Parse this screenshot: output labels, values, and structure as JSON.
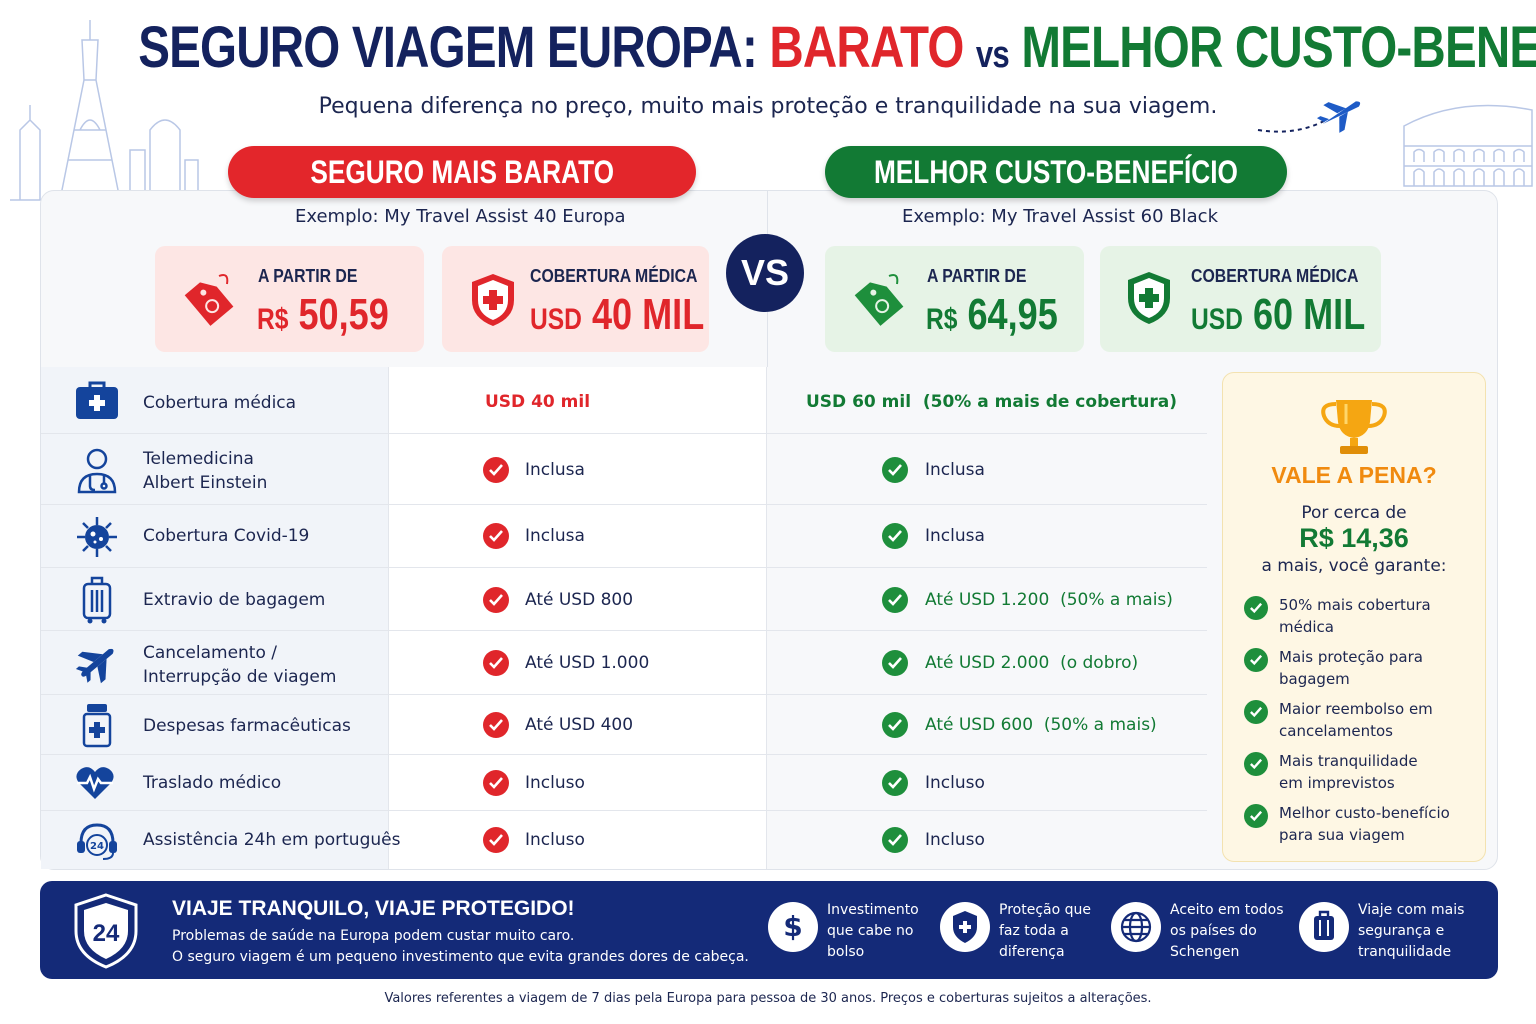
{
  "header": {
    "title_part1": "SEGURO VIAGEM EUROPA:",
    "title_cheap": "BARATO",
    "title_vs": "vs",
    "title_best": "MELHOR CUSTO-BENEFÍCIO",
    "subtitle": "Pequena diferença no preço, muito mais proteção e tranquilidade na sua viagem."
  },
  "cheap": {
    "label": "SEGURO MAIS BARATO",
    "example": "Exemplo: My Travel Assist 40 Europa",
    "price_label": "A PARTIR DE",
    "price_currency": "R$",
    "price_value": "50,59",
    "coverage_label": "COBERTURA MÉDICA",
    "coverage_currency": "USD",
    "coverage_value": "40 MIL"
  },
  "vs_label": "VS",
  "best": {
    "label": "MELHOR CUSTO-BENEFÍCIO",
    "example": "Exemplo: My Travel Assist 60 Black",
    "price_label": "A PARTIR DE",
    "price_currency": "R$",
    "price_value": "64,95",
    "coverage_label": "COBERTURA MÉDICA",
    "coverage_currency": "USD",
    "coverage_value": "60 MIL"
  },
  "table": {
    "rows": [
      {
        "icon": "medical-kit-icon",
        "label": "Cobertura médica",
        "cheap": "USD 40 mil",
        "best": "USD 60 mil",
        "best_note": "(50% a mais de cobertura)"
      },
      {
        "icon": "doctor-icon",
        "label_line1": "Telemedicina",
        "label_line2": "Albert Einstein",
        "cheap": "Inclusa",
        "best": "Inclusa"
      },
      {
        "icon": "virus-icon",
        "label": "Cobertura Covid-19",
        "cheap": "Inclusa",
        "best": "Inclusa"
      },
      {
        "icon": "luggage-icon",
        "label": "Extravio de bagagem",
        "cheap": "Até USD 800",
        "best": "Até USD 1.200",
        "best_note": "(50% a mais)"
      },
      {
        "icon": "airplane-icon",
        "label_line1": "Cancelamento /",
        "label_line2": "Interrupção de viagem",
        "cheap": "Até USD 1.000",
        "best": "Até USD 2.000",
        "best_note": "(o dobro)"
      },
      {
        "icon": "medicine-bottle-icon",
        "label": "Despesas farmacêuticas",
        "cheap": "Até USD 400",
        "best": "Até USD 600",
        "best_note": "(50% a mais)"
      },
      {
        "icon": "heartbeat-icon",
        "label": "Traslado médico",
        "cheap": "Incluso",
        "best": "Incluso"
      },
      {
        "icon": "headset-24h-icon",
        "label": "Assistência 24h em português",
        "cheap": "Incluso",
        "best": "Incluso"
      }
    ]
  },
  "vale": {
    "title": "VALE A PENA?",
    "line1": "Por cerca de",
    "price": "R$ 14,36",
    "line2": "a mais, você garante:",
    "benefits": [
      {
        "l1": "50% mais cobertura",
        "l2": "médica"
      },
      {
        "l1": "Mais proteção para",
        "l2": "bagagem"
      },
      {
        "l1": "Maior reembolso em",
        "l2": "cancelamentos"
      },
      {
        "l1": "Mais tranquilidade",
        "l2": "em imprevistos"
      },
      {
        "l1": "Melhor custo-benefício",
        "l2": "para sua viagem"
      }
    ]
  },
  "banner": {
    "badge": "24",
    "title": "VIAJE TRANQUILO, VIAJE PROTEGIDO!",
    "text1": "Problemas de saúde na Europa podem custar muito caro.",
    "text2": "O seguro viagem é um pequeno investimento que evita grandes dores de cabeça.",
    "features": [
      {
        "icon": "dollar-icon",
        "l1": "Investimento",
        "l2": "que cabe no",
        "l3": "bolso"
      },
      {
        "icon": "shield-plus-icon",
        "l1": "Proteção que",
        "l2": "faz toda a",
        "l3": "diferença"
      },
      {
        "icon": "globe-icon",
        "l1": "Aceito em todos",
        "l2": "os países do",
        "l3": "Schengen"
      },
      {
        "icon": "suitcase-icon",
        "l1": "Viaje com mais",
        "l2": "segurança e",
        "l3": "tranquilidade"
      }
    ]
  },
  "footnote": "Valores referentes a viagem de 7 dias pela Europa para pessoa de 30 anos. Preços e coberturas sujeitos a alterações.",
  "colors": {
    "navy": "#14225e",
    "red": "#e0262b",
    "green": "#127a34",
    "orange": "#f08a0f",
    "banner": "#142a78"
  }
}
